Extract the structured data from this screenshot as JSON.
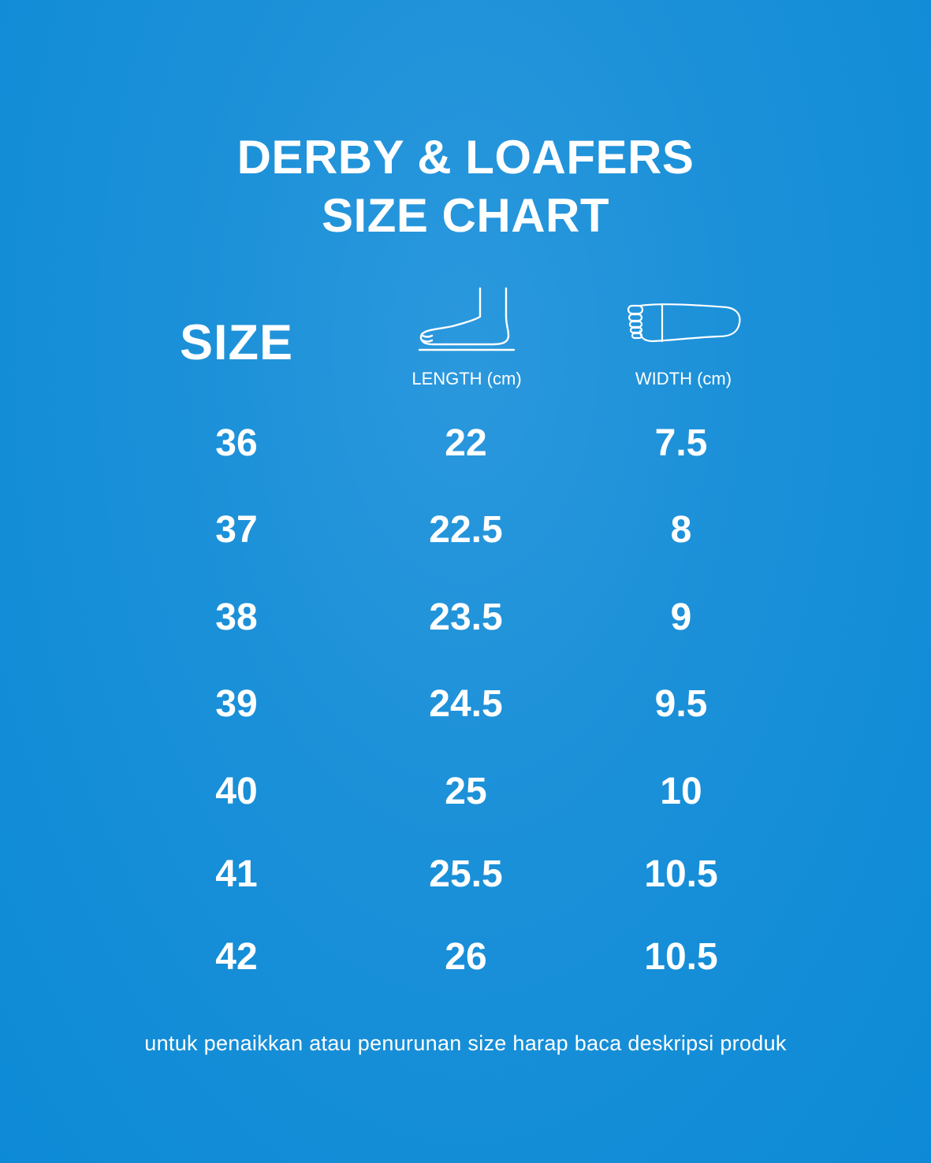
{
  "title": {
    "line1": "DERBY & LOAFERS",
    "line2": "SIZE CHART"
  },
  "headers": {
    "size": "SIZE",
    "length": "LENGTH (cm)",
    "width": "WIDTH (cm)",
    "length_icon": "foot-side-icon",
    "width_icon": "foot-sole-icon"
  },
  "rows": [
    {
      "size": "36",
      "length": "22",
      "width": "7.5"
    },
    {
      "size": "37",
      "length": "22.5",
      "width": "8"
    },
    {
      "size": "38",
      "length": "23.5",
      "width": "9"
    },
    {
      "size": "39",
      "length": "24.5",
      "width": "9.5"
    },
    {
      "size": "40",
      "length": "25",
      "width": "10"
    },
    {
      "size": "41",
      "length": "25.5",
      "width": "10.5"
    },
    {
      "size": "42",
      "length": "26",
      "width": "10.5"
    }
  ],
  "footnote": "untuk penaikkan atau penurunan size harap baca deskripsi produk",
  "colors": {
    "background": "#1a90d8",
    "text": "#ffffff"
  }
}
